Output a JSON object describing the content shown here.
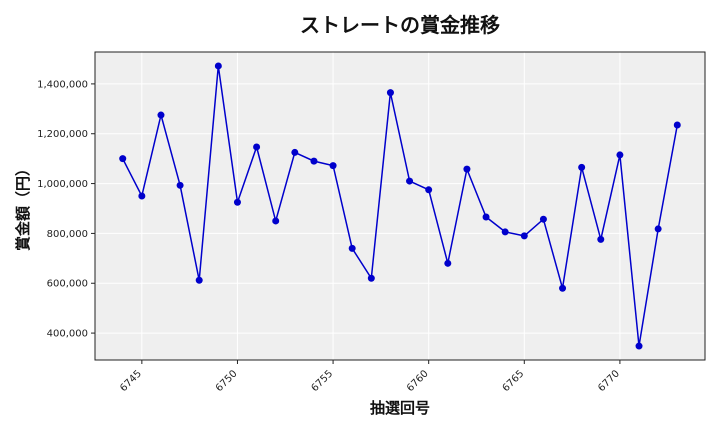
{
  "chart_data": {
    "type": "line",
    "title": "ストレートの賞金推移",
    "xlabel": "抽選回号",
    "ylabel": "賞金額（円）",
    "x": [
      6744,
      6745,
      6746,
      6747,
      6748,
      6749,
      6750,
      6751,
      6752,
      6753,
      6754,
      6755,
      6756,
      6757,
      6758,
      6759,
      6760,
      6761,
      6762,
      6763,
      6764,
      6765,
      6766,
      6767,
      6768,
      6769,
      6770,
      6771,
      6772,
      6773
    ],
    "series": [
      {
        "values": [
          1100000,
          950000,
          1275000,
          993000,
          612000,
          1472000,
          925000,
          1147000,
          850000,
          1125000,
          1090000,
          1072000,
          740000,
          620000,
          1365000,
          1010000,
          975000,
          680000,
          1058000,
          866000,
          806000,
          790000,
          857000,
          580000,
          1065000,
          776000,
          1115000,
          348000,
          818000,
          1235000
        ],
        "color": "#0000cc"
      }
    ],
    "x_ticks": [
      6745,
      6750,
      6755,
      6760,
      6765,
      6770
    ],
    "x_tick_labels": [
      "6745",
      "6750",
      "6755",
      "6760",
      "6765",
      "6770"
    ],
    "y_ticks": [
      400000,
      600000,
      800000,
      1000000,
      1200000,
      1400000
    ],
    "y_tick_labels": [
      "400,000",
      "600,000",
      "800,000",
      "1,000,000",
      "1,200,000",
      "1,400,000"
    ],
    "xlim": [
      6742.55,
      6774.45
    ],
    "ylim": [
      292000,
      1528000
    ],
    "grid": true,
    "background": "#efefef"
  }
}
